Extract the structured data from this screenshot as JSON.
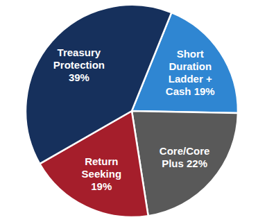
{
  "chart_data": {
    "type": "pie",
    "categories": [
      "Short Duration Ladder + Cash",
      "Core/Core Plus",
      "Return Seeking",
      "Treasury Protection"
    ],
    "values": [
      19,
      22,
      19,
      39
    ],
    "value_labels": [
      "19%",
      "22%",
      "19%",
      "39%"
    ],
    "colors": [
      "#2f86d2",
      "#595959",
      "#a51e2b",
      "#16305c"
    ],
    "data_labels": true
  }
}
